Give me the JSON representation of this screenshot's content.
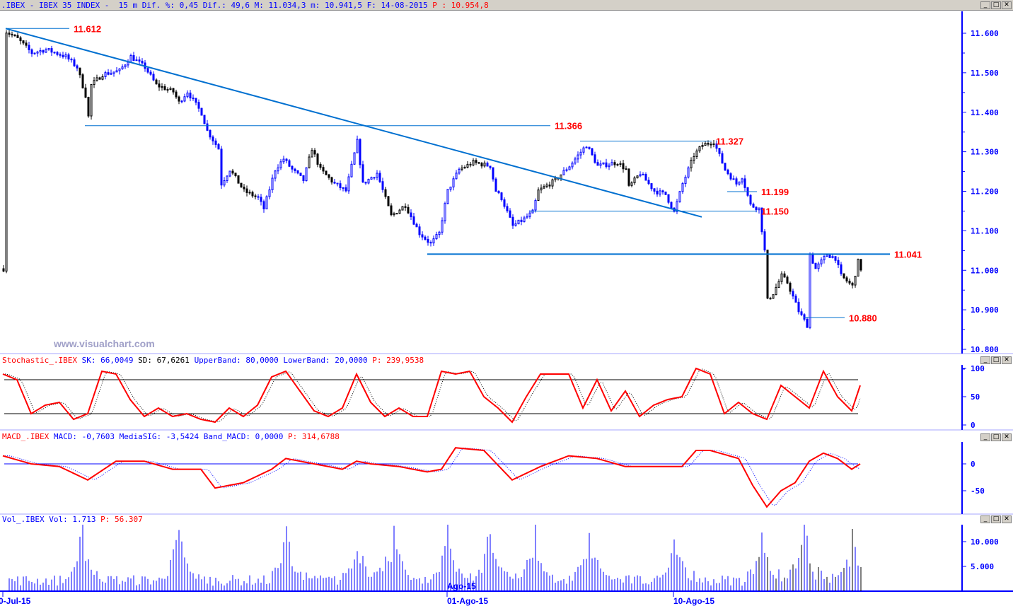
{
  "header": {
    "symbol": ".IBEX - IBEX 35 INDEX - ",
    "stats": " 15 m Dif. %: 0,45 Dif.: 49,6 M: 11.034,3 m: 10.941,5 F: 14-08-2015 ",
    "last": "P : 10.954,8"
  },
  "watermark": "www.visualchart.com",
  "window_buttons": {
    "minimize": "_",
    "maximize": "□",
    "close": "✕"
  },
  "stochastic_label": {
    "name": "Stochastic_.IBEX ",
    "sk": "SK: 66,0049 ",
    "sd": "SD: 67,6261 ",
    "bands": "UpperBand: 80,0000 LowerBand: 20,0000 ",
    "p": "P: 239,9538"
  },
  "macd_label": {
    "name": "MACD_.IBEX ",
    "vals": "MACD: -0,7603 MediaSIG: -3,5424 Band_MACD: 0,0000 ",
    "p": "P: 314,6788"
  },
  "vol_label": {
    "name": "Vol_.IBEX ",
    "vals": "Vol: 1.713 ",
    "p": "P: 56.307"
  },
  "colors": {
    "up": "#0000ff",
    "down": "#000000",
    "trend": "#0070d0",
    "level": "#ff0000",
    "axis": "#0000ff"
  },
  "chart_data": [
    {
      "type": "candlestick",
      "title": ".IBEX 15 m",
      "ylim": [
        10.78,
        11.66
      ],
      "yticks": [
        "11.600",
        "11.500",
        "11.400",
        "11.300",
        "11.200",
        "11.100",
        "11.000",
        "10.900",
        "10.800"
      ],
      "yticks_values": [
        11.6,
        11.5,
        11.4,
        11.3,
        11.2,
        11.1,
        11.0,
        10.9,
        10.8
      ],
      "xticks": [
        {
          "bar": 0,
          "label": "0-Jul-15"
        },
        {
          "bar": 157,
          "label": "01-Ago-15"
        },
        {
          "bar": 237,
          "label": "10-Ago-15"
        }
      ],
      "overlap_label": "Ago-15",
      "price_path": [
        [
          1,
          11.604
        ],
        [
          5,
          11.586
        ],
        [
          10,
          11.55
        ],
        [
          15,
          11.559
        ],
        [
          22,
          11.541
        ],
        [
          26,
          11.514
        ],
        [
          29,
          11.443
        ],
        [
          30,
          11.389
        ],
        [
          31,
          11.469
        ],
        [
          35,
          11.496
        ],
        [
          41,
          11.505
        ],
        [
          45,
          11.541
        ],
        [
          50,
          11.514
        ],
        [
          54,
          11.469
        ],
        [
          60,
          11.452
        ],
        [
          62,
          11.425
        ],
        [
          65,
          11.452
        ],
        [
          70,
          11.398
        ],
        [
          72,
          11.353
        ],
        [
          76,
          11.308
        ],
        [
          77,
          11.219
        ],
        [
          80,
          11.255
        ],
        [
          85,
          11.201
        ],
        [
          90,
          11.183
        ],
        [
          92,
          11.156
        ],
        [
          96,
          11.255
        ],
        [
          99,
          11.282
        ],
        [
          102,
          11.255
        ],
        [
          106,
          11.228
        ],
        [
          109,
          11.308
        ],
        [
          112,
          11.255
        ],
        [
          117,
          11.219
        ],
        [
          121,
          11.201
        ],
        [
          125,
          11.326
        ],
        [
          127,
          11.219
        ],
        [
          132,
          11.246
        ],
        [
          137,
          11.138
        ],
        [
          142,
          11.165
        ],
        [
          147,
          11.094
        ],
        [
          151,
          11.067
        ],
        [
          154,
          11.094
        ],
        [
          157,
          11.201
        ],
        [
          161,
          11.255
        ],
        [
          166,
          11.273
        ],
        [
          172,
          11.264
        ],
        [
          174,
          11.201
        ],
        [
          176,
          11.183
        ],
        [
          180,
          11.112
        ],
        [
          184,
          11.13
        ],
        [
          187,
          11.147
        ],
        [
          189,
          11.201
        ],
        [
          195,
          11.228
        ],
        [
          200,
          11.264
        ],
        [
          206,
          11.317
        ],
        [
          210,
          11.264
        ],
        [
          217,
          11.273
        ],
        [
          220,
          11.255
        ],
        [
          221,
          11.21
        ],
        [
          225,
          11.246
        ],
        [
          230,
          11.201
        ],
        [
          234,
          11.192
        ],
        [
          237,
          11.147
        ],
        [
          240,
          11.219
        ],
        [
          244,
          11.291
        ],
        [
          247,
          11.317
        ],
        [
          251,
          11.326
        ],
        [
          255,
          11.255
        ],
        [
          259,
          11.219
        ],
        [
          261,
          11.237
        ],
        [
          264,
          11.165
        ],
        [
          267,
          11.156
        ],
        [
          269,
          11.049
        ],
        [
          270,
          10.924
        ],
        [
          272,
          10.942
        ],
        [
          275,
          10.986
        ],
        [
          277,
          10.969
        ],
        [
          281,
          10.897
        ],
        [
          284,
          10.861
        ],
        [
          285,
          11.04
        ],
        [
          287,
          11.004
        ],
        [
          291,
          11.04
        ],
        [
          294,
          11.031
        ],
        [
          296,
          10.986
        ],
        [
          300,
          10.96
        ],
        [
          302,
          11.022
        ],
        [
          303,
          11.004
        ]
      ],
      "levels": [
        {
          "value": "11.612",
          "price": 11.612,
          "from": 1,
          "to": 25
        },
        {
          "value": "11.366",
          "price": 11.366,
          "from": 29,
          "to": 195
        },
        {
          "value": "11.327",
          "price": 11.327,
          "from": 204,
          "to": 252
        },
        {
          "value": "11.199",
          "price": 11.199,
          "from": 256,
          "to": 268
        },
        {
          "value": "11.150",
          "price": 11.15,
          "from": 186,
          "to": 268
        },
        {
          "value": "11.041",
          "price": 11.041,
          "from": 150,
          "to": 315
        },
        {
          "value": "10.880",
          "price": 10.88,
          "from": 283,
          "to": 299
        }
      ],
      "trendline": {
        "from": [
          1,
          11.612
        ],
        "to": [
          247,
          11.135
        ]
      }
    },
    {
      "type": "line",
      "title": "Stochastic",
      "ylim": [
        0,
        100
      ],
      "bands": [
        80,
        20
      ],
      "yticks": [
        "100",
        "50",
        "0"
      ],
      "sk": [
        [
          0,
          90
        ],
        [
          5,
          80
        ],
        [
          10,
          20
        ],
        [
          15,
          35
        ],
        [
          20,
          40
        ],
        [
          25,
          10
        ],
        [
          30,
          20
        ],
        [
          35,
          95
        ],
        [
          40,
          90
        ],
        [
          45,
          45
        ],
        [
          50,
          15
        ],
        [
          55,
          30
        ],
        [
          60,
          15
        ],
        [
          65,
          20
        ],
        [
          70,
          10
        ],
        [
          75,
          5
        ],
        [
          80,
          30
        ],
        [
          85,
          15
        ],
        [
          90,
          35
        ],
        [
          95,
          85
        ],
        [
          100,
          95
        ],
        [
          105,
          60
        ],
        [
          110,
          25
        ],
        [
          115,
          15
        ],
        [
          120,
          30
        ],
        [
          125,
          90
        ],
        [
          130,
          40
        ],
        [
          135,
          15
        ],
        [
          140,
          30
        ],
        [
          145,
          15
        ],
        [
          150,
          15
        ],
        [
          155,
          95
        ],
        [
          160,
          90
        ],
        [
          165,
          95
        ],
        [
          170,
          50
        ],
        [
          175,
          30
        ],
        [
          180,
          5
        ],
        [
          185,
          50
        ],
        [
          190,
          90
        ],
        [
          195,
          90
        ],
        [
          200,
          90
        ],
        [
          205,
          30
        ],
        [
          210,
          80
        ],
        [
          215,
          25
        ],
        [
          220,
          60
        ],
        [
          225,
          15
        ],
        [
          230,
          35
        ],
        [
          235,
          45
        ],
        [
          240,
          50
        ],
        [
          245,
          100
        ],
        [
          250,
          90
        ],
        [
          255,
          20
        ],
        [
          260,
          40
        ],
        [
          265,
          20
        ],
        [
          270,
          10
        ],
        [
          275,
          70
        ],
        [
          280,
          50
        ],
        [
          285,
          30
        ],
        [
          290,
          95
        ],
        [
          295,
          50
        ],
        [
          300,
          25
        ],
        [
          303,
          70
        ]
      ]
    },
    {
      "type": "line",
      "title": "MACD",
      "ylim": [
        -95,
        45
      ],
      "yticks": [
        "0",
        "-50"
      ],
      "macd": [
        [
          0,
          15
        ],
        [
          10,
          0
        ],
        [
          20,
          -5
        ],
        [
          30,
          -30
        ],
        [
          40,
          5
        ],
        [
          50,
          5
        ],
        [
          60,
          -10
        ],
        [
          70,
          -10
        ],
        [
          75,
          -45
        ],
        [
          85,
          -35
        ],
        [
          95,
          -10
        ],
        [
          100,
          10
        ],
        [
          110,
          0
        ],
        [
          120,
          -10
        ],
        [
          125,
          5
        ],
        [
          130,
          0
        ],
        [
          140,
          -5
        ],
        [
          150,
          -15
        ],
        [
          155,
          -10
        ],
        [
          160,
          30
        ],
        [
          170,
          25
        ],
        [
          180,
          -30
        ],
        [
          190,
          -5
        ],
        [
          200,
          15
        ],
        [
          210,
          10
        ],
        [
          220,
          -5
        ],
        [
          230,
          -5
        ],
        [
          240,
          -5
        ],
        [
          245,
          25
        ],
        [
          250,
          25
        ],
        [
          260,
          10
        ],
        [
          265,
          -40
        ],
        [
          270,
          -80
        ],
        [
          275,
          -50
        ],
        [
          280,
          -35
        ],
        [
          285,
          5
        ],
        [
          290,
          20
        ],
        [
          295,
          10
        ],
        [
          300,
          -10
        ],
        [
          303,
          0
        ]
      ]
    },
    {
      "type": "bar",
      "title": "Volume",
      "ylim": [
        0,
        13500
      ],
      "yticks": [
        "10.000",
        "5.000"
      ],
      "session_spike_bars": [
        28,
        62,
        100,
        125,
        138,
        157,
        172,
        188,
        207,
        237,
        268,
        283,
        300
      ],
      "base_volume": 2200,
      "spike_volume": 13000
    }
  ]
}
